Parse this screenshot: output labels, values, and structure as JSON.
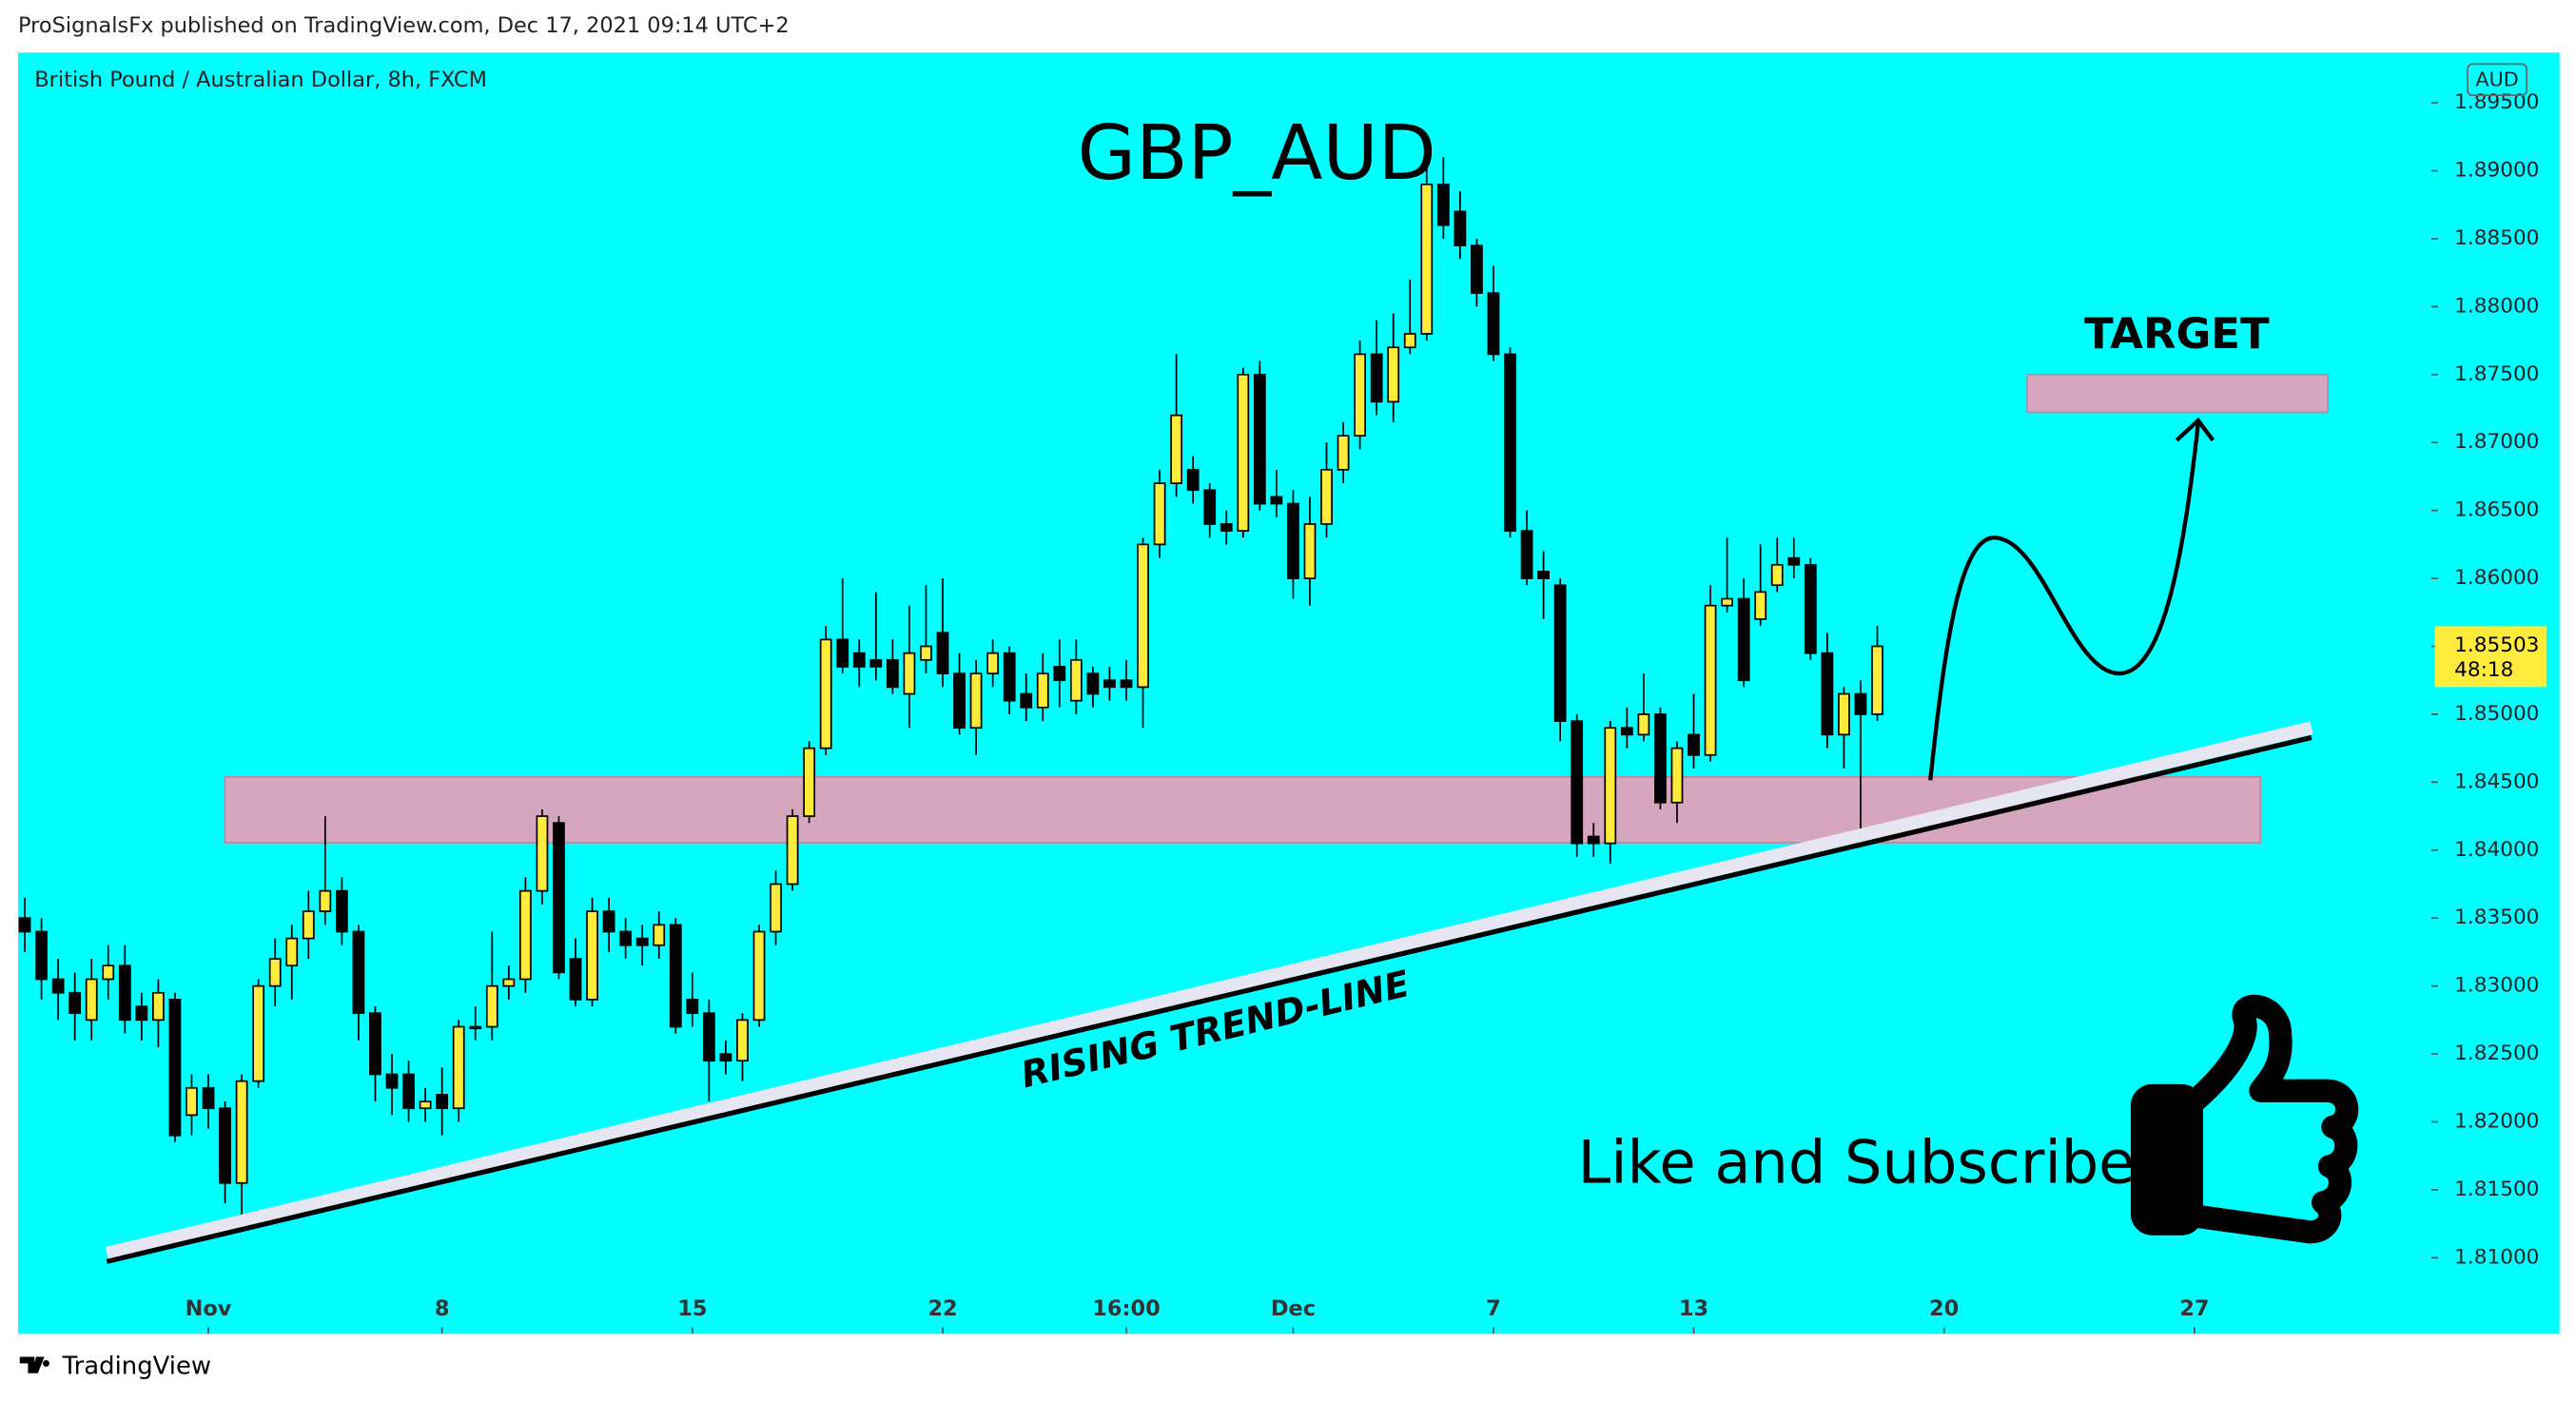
{
  "header": {
    "publisher": "ProSignalsFx published on TradingView.com, Dec 17, 2021 09:14 UTC+2"
  },
  "footer": {
    "brand": "TradingView"
  },
  "chart_data": {
    "type": "candlestick",
    "symbol": "British Pound / Australian Dollar, 8h, FXCM",
    "currency": "AUD",
    "title": "GBP_AUD",
    "annotations": {
      "target": "TARGET",
      "trend_line": "RISING TREND-LINE",
      "cta": "Like and Subscribe"
    },
    "last_price": {
      "value": 1.85503,
      "label": "1.85503"
    },
    "countdown": "48:18",
    "up_color": "#ffeb3b",
    "down_color": "#000000",
    "background": "#00ffff",
    "open": [
      1.835,
      1.834,
      1.8305,
      1.8295,
      1.8275,
      1.8305,
      1.8315,
      1.8285,
      1.8275,
      1.829,
      1.8205,
      1.8225,
      1.821,
      1.8155,
      1.823,
      1.83,
      1.8315,
      1.8335,
      1.8355,
      1.837,
      1.834,
      1.828,
      1.8235,
      1.8235,
      1.821,
      1.822,
      1.821,
      1.827,
      1.827,
      1.83,
      1.8305,
      1.837,
      1.842,
      1.832,
      1.829,
      1.8355,
      1.834,
      1.8335,
      1.833,
      1.8345,
      1.829,
      1.828,
      1.825,
      1.8245,
      1.8275,
      1.834,
      1.8375,
      1.8425,
      1.8475,
      1.8555,
      1.8545,
      1.854,
      1.854,
      1.8515,
      1.854,
      1.856,
      1.853,
      1.849,
      1.853,
      1.8545,
      1.8515,
      1.8505,
      1.8535,
      1.851,
      1.853,
      1.8525,
      1.8525,
      1.852,
      1.8625,
      1.867,
      1.868,
      1.8665,
      1.864,
      1.8635,
      1.875,
      1.866,
      1.8655,
      1.86,
      1.864,
      1.868,
      1.8705,
      1.8765,
      1.873,
      1.877,
      1.878,
      1.889,
      1.887,
      1.8845,
      1.881,
      1.8765,
      1.8635,
      1.8605,
      1.8595,
      1.8495,
      1.841,
      1.8405,
      1.849,
      1.8485,
      1.85,
      1.8435,
      1.8485,
      1.847,
      1.858,
      1.8585,
      1.857,
      1.8595,
      1.8615,
      1.861,
      1.8545,
      1.8485,
      1.8515,
      1.85
    ],
    "high": [
      1.8365,
      1.835,
      1.832,
      1.831,
      1.832,
      1.833,
      1.833,
      1.8295,
      1.8305,
      1.8295,
      1.8235,
      1.8235,
      1.8215,
      1.8235,
      1.8305,
      1.8335,
      1.8345,
      1.837,
      1.8425,
      1.838,
      1.8345,
      1.8285,
      1.825,
      1.8245,
      1.8225,
      1.824,
      1.8275,
      1.8285,
      1.834,
      1.8315,
      1.838,
      1.843,
      1.8425,
      1.8335,
      1.8365,
      1.8365,
      1.835,
      1.8345,
      1.8355,
      1.835,
      1.831,
      1.829,
      1.826,
      1.828,
      1.8345,
      1.8385,
      1.843,
      1.848,
      1.8565,
      1.86,
      1.8555,
      1.859,
      1.8555,
      1.858,
      1.8595,
      1.86,
      1.8545,
      1.854,
      1.8555,
      1.855,
      1.853,
      1.8545,
      1.8555,
      1.8555,
      1.8535,
      1.8535,
      1.854,
      1.863,
      1.868,
      1.8765,
      1.869,
      1.867,
      1.865,
      1.8755,
      1.876,
      1.868,
      1.8665,
      1.866,
      1.87,
      1.8715,
      1.8775,
      1.879,
      1.8795,
      1.882,
      1.891,
      1.891,
      1.8885,
      1.885,
      1.883,
      1.877,
      1.865,
      1.862,
      1.86,
      1.85,
      1.842,
      1.8495,
      1.8505,
      1.853,
      1.8505,
      1.848,
      1.8515,
      1.8595,
      1.863,
      1.86,
      1.8625,
      1.863,
      1.863,
      1.8615,
      1.856,
      1.852,
      1.8525,
      1.8565
    ],
    "low": [
      1.8325,
      1.829,
      1.8275,
      1.826,
      1.826,
      1.829,
      1.8265,
      1.826,
      1.8255,
      1.8185,
      1.819,
      1.8195,
      1.814,
      1.8125,
      1.8225,
      1.8285,
      1.829,
      1.832,
      1.8345,
      1.833,
      1.826,
      1.8215,
      1.8205,
      1.82,
      1.82,
      1.819,
      1.82,
      1.826,
      1.826,
      1.829,
      1.8295,
      1.836,
      1.8305,
      1.8285,
      1.8285,
      1.8325,
      1.832,
      1.8315,
      1.832,
      1.8265,
      1.827,
      1.8215,
      1.8235,
      1.823,
      1.827,
      1.833,
      1.837,
      1.842,
      1.847,
      1.853,
      1.852,
      1.8525,
      1.8515,
      1.849,
      1.853,
      1.852,
      1.8485,
      1.847,
      1.852,
      1.85,
      1.8495,
      1.8495,
      1.8505,
      1.85,
      1.8505,
      1.851,
      1.851,
      1.849,
      1.8615,
      1.866,
      1.8655,
      1.863,
      1.8625,
      1.863,
      1.865,
      1.8645,
      1.8585,
      1.858,
      1.863,
      1.867,
      1.8695,
      1.872,
      1.8715,
      1.8765,
      1.8775,
      1.885,
      1.8835,
      1.88,
      1.876,
      1.863,
      1.8595,
      1.857,
      1.848,
      1.8395,
      1.8395,
      1.839,
      1.8475,
      1.848,
      1.843,
      1.842,
      1.846,
      1.8465,
      1.8575,
      1.852,
      1.8565,
      1.859,
      1.86,
      1.854,
      1.8475,
      1.846,
      1.8415,
      1.8495
    ],
    "close": [
      1.834,
      1.8305,
      1.8295,
      1.828,
      1.8305,
      1.8315,
      1.8275,
      1.8275,
      1.8295,
      1.819,
      1.8225,
      1.821,
      1.8155,
      1.823,
      1.83,
      1.832,
      1.8335,
      1.8355,
      1.837,
      1.834,
      1.828,
      1.8235,
      1.8225,
      1.821,
      1.8215,
      1.821,
      1.827,
      1.827,
      1.83,
      1.8305,
      1.837,
      1.8425,
      1.831,
      1.829,
      1.8355,
      1.834,
      1.833,
      1.833,
      1.8345,
      1.827,
      1.828,
      1.8245,
      1.8245,
      1.8275,
      1.834,
      1.8375,
      1.8425,
      1.8475,
      1.8555,
      1.8535,
      1.8535,
      1.8535,
      1.852,
      1.8545,
      1.855,
      1.853,
      1.849,
      1.853,
      1.8545,
      1.851,
      1.8505,
      1.853,
      1.8525,
      1.854,
      1.8515,
      1.852,
      1.852,
      1.8625,
      1.867,
      1.872,
      1.8665,
      1.864,
      1.8635,
      1.875,
      1.8655,
      1.8655,
      1.86,
      1.864,
      1.868,
      1.8705,
      1.8765,
      1.873,
      1.877,
      1.878,
      1.889,
      1.886,
      1.8845,
      1.881,
      1.8765,
      1.8635,
      1.86,
      1.86,
      1.8495,
      1.8405,
      1.8405,
      1.849,
      1.8485,
      1.85,
      1.8435,
      1.8475,
      1.847,
      1.858,
      1.8585,
      1.8525,
      1.859,
      1.861,
      1.861,
      1.8545,
      1.8485,
      1.8515,
      1.85,
      1.855
    ],
    "xlim": [
      -0.4,
      144.2
    ],
    "xticks": [
      {
        "value": 11,
        "label": "Nov"
      },
      {
        "value": 25,
        "label": "8"
      },
      {
        "value": 40,
        "label": "15"
      },
      {
        "value": 55,
        "label": "22"
      },
      {
        "value": 66,
        "label": "16:00"
      },
      {
        "value": 76,
        "label": "Dec"
      },
      {
        "value": 88,
        "label": "7"
      },
      {
        "value": 100,
        "label": "13"
      },
      {
        "value": 115,
        "label": "20"
      },
      {
        "value": 130,
        "label": "27"
      }
    ],
    "ylim": [
      1.8044,
      1.8987
    ],
    "yticks": [
      {
        "value": 1.81,
        "label": "1.81000"
      },
      {
        "value": 1.815,
        "label": "1.81500"
      },
      {
        "value": 1.82,
        "label": "1.82000"
      },
      {
        "value": 1.825,
        "label": "1.82500"
      },
      {
        "value": 1.83,
        "label": "1.83000"
      },
      {
        "value": 1.835,
        "label": "1.83500"
      },
      {
        "value": 1.84,
        "label": "1.84000"
      },
      {
        "value": 1.845,
        "label": "1.84500"
      },
      {
        "value": 1.85,
        "label": "1.85000"
      },
      {
        "value": 1.855,
        "label": "1.85500"
      },
      {
        "value": 1.86,
        "label": "1.86000"
      },
      {
        "value": 1.865,
        "label": "1.86500"
      },
      {
        "value": 1.87,
        "label": "1.87000"
      },
      {
        "value": 1.875,
        "label": "1.87500"
      },
      {
        "value": 1.88,
        "label": "1.88000"
      },
      {
        "value": 1.885,
        "label": "1.88500"
      },
      {
        "value": 1.89,
        "label": "1.89000"
      },
      {
        "value": 1.895,
        "label": "1.89500"
      }
    ]
  }
}
